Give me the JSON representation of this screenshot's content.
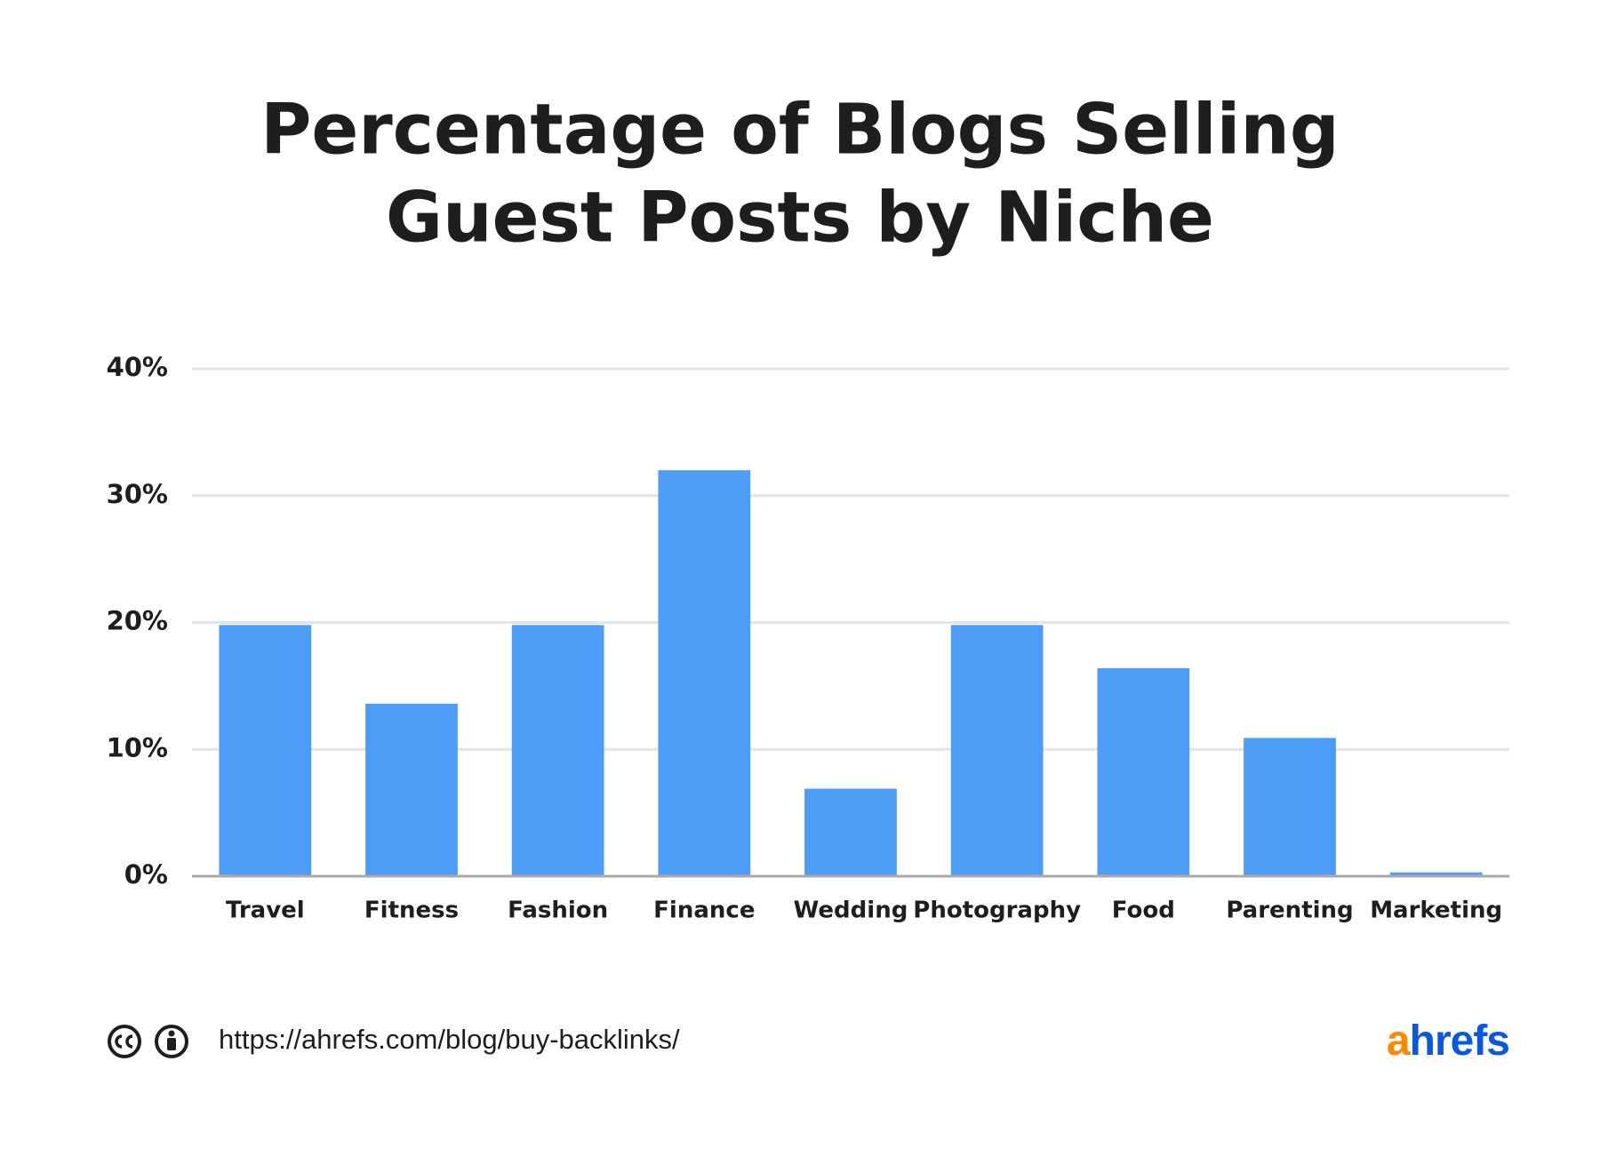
{
  "chart_data": {
    "type": "bar",
    "title": [
      "Percentage of Blogs Selling",
      "Guest Posts by Niche"
    ],
    "categories": [
      "Travel",
      "Fitness",
      "Fashion",
      "Finance",
      "Wedding",
      "Photography",
      "Food",
      "Parenting",
      "Marketing"
    ],
    "values": [
      19.8,
      13.6,
      19.8,
      32,
      6.9,
      19.8,
      16.4,
      10.9,
      0.3
    ],
    "color": "#4d9cf5",
    "ylim": [
      0,
      40
    ],
    "yticks": [
      {
        "value": 0,
        "label": "0%"
      },
      {
        "value": 10,
        "label": "10%"
      },
      {
        "value": 20,
        "label": "20%"
      },
      {
        "value": 30,
        "label": "30%"
      },
      {
        "value": 40,
        "label": "40%"
      }
    ],
    "grid": true
  },
  "footer": {
    "url": "https://ahrefs.com/blog/buy-backlinks/",
    "logo": [
      "a",
      "hrefs"
    ]
  }
}
